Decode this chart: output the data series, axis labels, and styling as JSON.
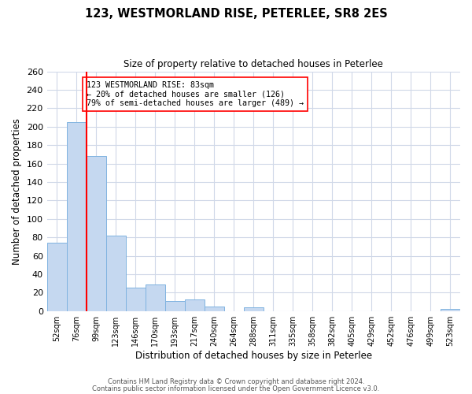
{
  "title": "123, WESTMORLAND RISE, PETERLEE, SR8 2ES",
  "subtitle": "Size of property relative to detached houses in Peterlee",
  "xlabel": "Distribution of detached houses by size in Peterlee",
  "ylabel": "Number of detached properties",
  "footer_line1": "Contains HM Land Registry data © Crown copyright and database right 2024.",
  "footer_line2": "Contains public sector information licensed under the Open Government Licence v3.0.",
  "bar_labels": [
    "52sqm",
    "76sqm",
    "99sqm",
    "123sqm",
    "146sqm",
    "170sqm",
    "193sqm",
    "217sqm",
    "240sqm",
    "264sqm",
    "288sqm",
    "311sqm",
    "335sqm",
    "358sqm",
    "382sqm",
    "405sqm",
    "429sqm",
    "452sqm",
    "476sqm",
    "499sqm",
    "523sqm"
  ],
  "bar_values": [
    74,
    205,
    168,
    82,
    25,
    29,
    11,
    13,
    5,
    0,
    4,
    0,
    0,
    0,
    0,
    0,
    0,
    0,
    0,
    0,
    2
  ],
  "bar_color": "#c5d8f0",
  "bar_edge_color": "#7fb3e0",
  "ylim": [
    0,
    260
  ],
  "yticks": [
    0,
    20,
    40,
    60,
    80,
    100,
    120,
    140,
    160,
    180,
    200,
    220,
    240,
    260
  ],
  "property_label": "123 WESTMORLAND RISE: 83sqm",
  "annotation_line1": "← 20% of detached houses are smaller (126)",
  "annotation_line2": "79% of semi-detached houses are larger (489) →",
  "background_color": "#ffffff",
  "grid_color": "#d0d8e8",
  "vline_x": 1.5
}
